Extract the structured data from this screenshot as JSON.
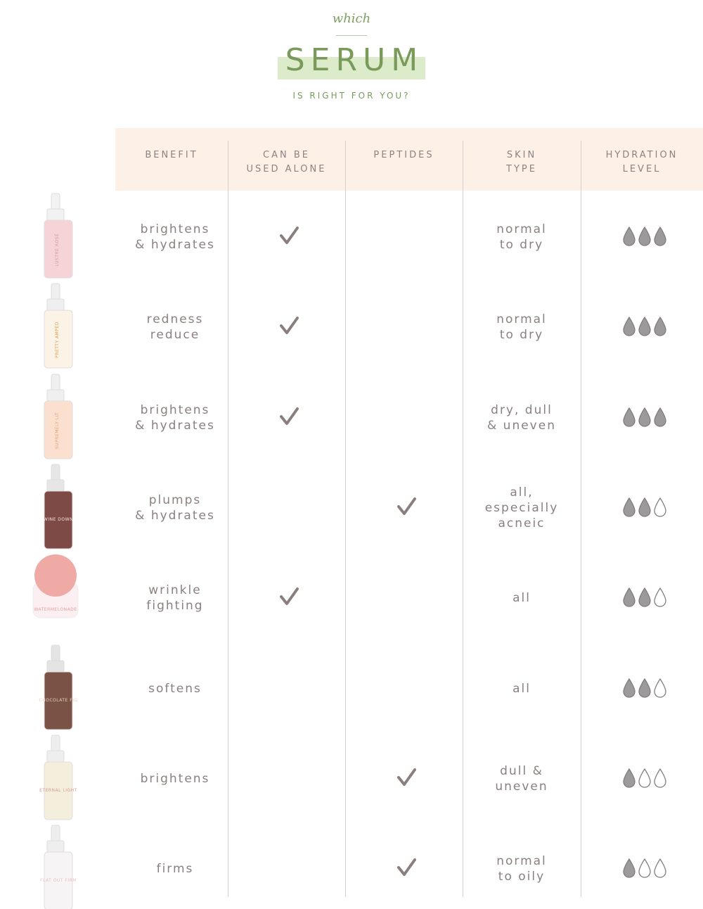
{
  "header": {
    "kicker": "which",
    "title": "SERUM",
    "subtitle": "IS RIGHT FOR YOU?"
  },
  "table": {
    "columns": [
      "BENEFIT",
      "CAN BE\nUSED ALONE",
      "PEPTIDES",
      "SKIN\nTYPE",
      "HYDRATION\nLEVEL"
    ],
    "rows": [
      {
        "product": "LUSTRE ROSÉ",
        "benefit": "brightens\n& hydrates",
        "alone": true,
        "peptides": false,
        "skin": "normal\nto dry",
        "hydration": 3
      },
      {
        "product": "PRETTY AMPED",
        "benefit": "redness\nreduce",
        "alone": true,
        "peptides": false,
        "skin": "normal\nto dry",
        "hydration": 3
      },
      {
        "product": "SUPREMELY LIT",
        "benefit": "brightens\n& hydrates",
        "alone": true,
        "peptides": false,
        "skin": "dry, dull\n& uneven",
        "hydration": 3
      },
      {
        "product": "WINE DOWN",
        "benefit": "plumps\n& hydrates",
        "alone": false,
        "peptides": true,
        "skin": "all,\nespecially\nacneic",
        "hydration": 2
      },
      {
        "product": "WATERMELONADE",
        "benefit": "wrinkle\nfighting",
        "alone": true,
        "peptides": false,
        "skin": "all",
        "hydration": 2
      },
      {
        "product": "CHOCOLATE FIG",
        "benefit": "softens",
        "alone": false,
        "peptides": false,
        "skin": "all",
        "hydration": 2
      },
      {
        "product": "ETERNAL LIGHT",
        "benefit": "brightens",
        "alone": false,
        "peptides": true,
        "skin": "dull &\nuneven",
        "hydration": 1
      },
      {
        "product": "FLAT OUT FIRM",
        "benefit": "firms",
        "alone": false,
        "peptides": true,
        "skin": "normal\nto oily",
        "hydration": 1
      }
    ]
  }
}
